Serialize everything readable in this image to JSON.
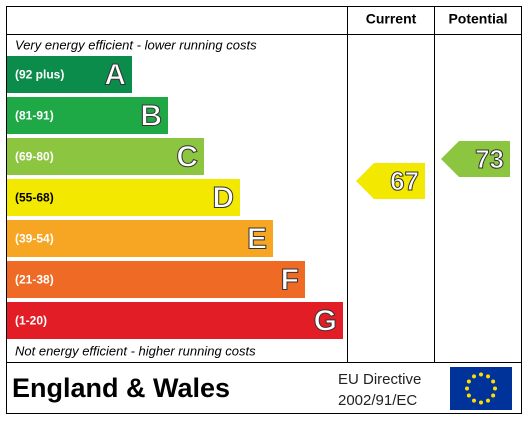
{
  "header": {
    "current": "Current",
    "potential": "Potential"
  },
  "top_note": "Very energy efficient - lower running costs",
  "bottom_note": "Not energy efficient - higher running costs",
  "bands": [
    {
      "range": "(92 plus)",
      "letter": "A",
      "color": "#0c8c4a"
    },
    {
      "range": "(81-91)",
      "letter": "B",
      "color": "#1fa846"
    },
    {
      "range": "(69-80)",
      "letter": "C",
      "color": "#8cc540"
    },
    {
      "range": "(55-68)",
      "letter": "D",
      "color": "#f3e800"
    },
    {
      "range": "(39-54)",
      "letter": "E",
      "color": "#f6a623"
    },
    {
      "range": "(21-38)",
      "letter": "F",
      "color": "#ef6a24"
    },
    {
      "range": "(1-20)",
      "letter": "G",
      "color": "#e31d25"
    }
  ],
  "current": {
    "value": 67,
    "color": "#f3e800"
  },
  "potential": {
    "value": 73,
    "color": "#8cc540"
  },
  "footer": {
    "region": "England & Wales",
    "directive_line1": "EU Directive",
    "directive_line2": "2002/91/EC"
  }
}
